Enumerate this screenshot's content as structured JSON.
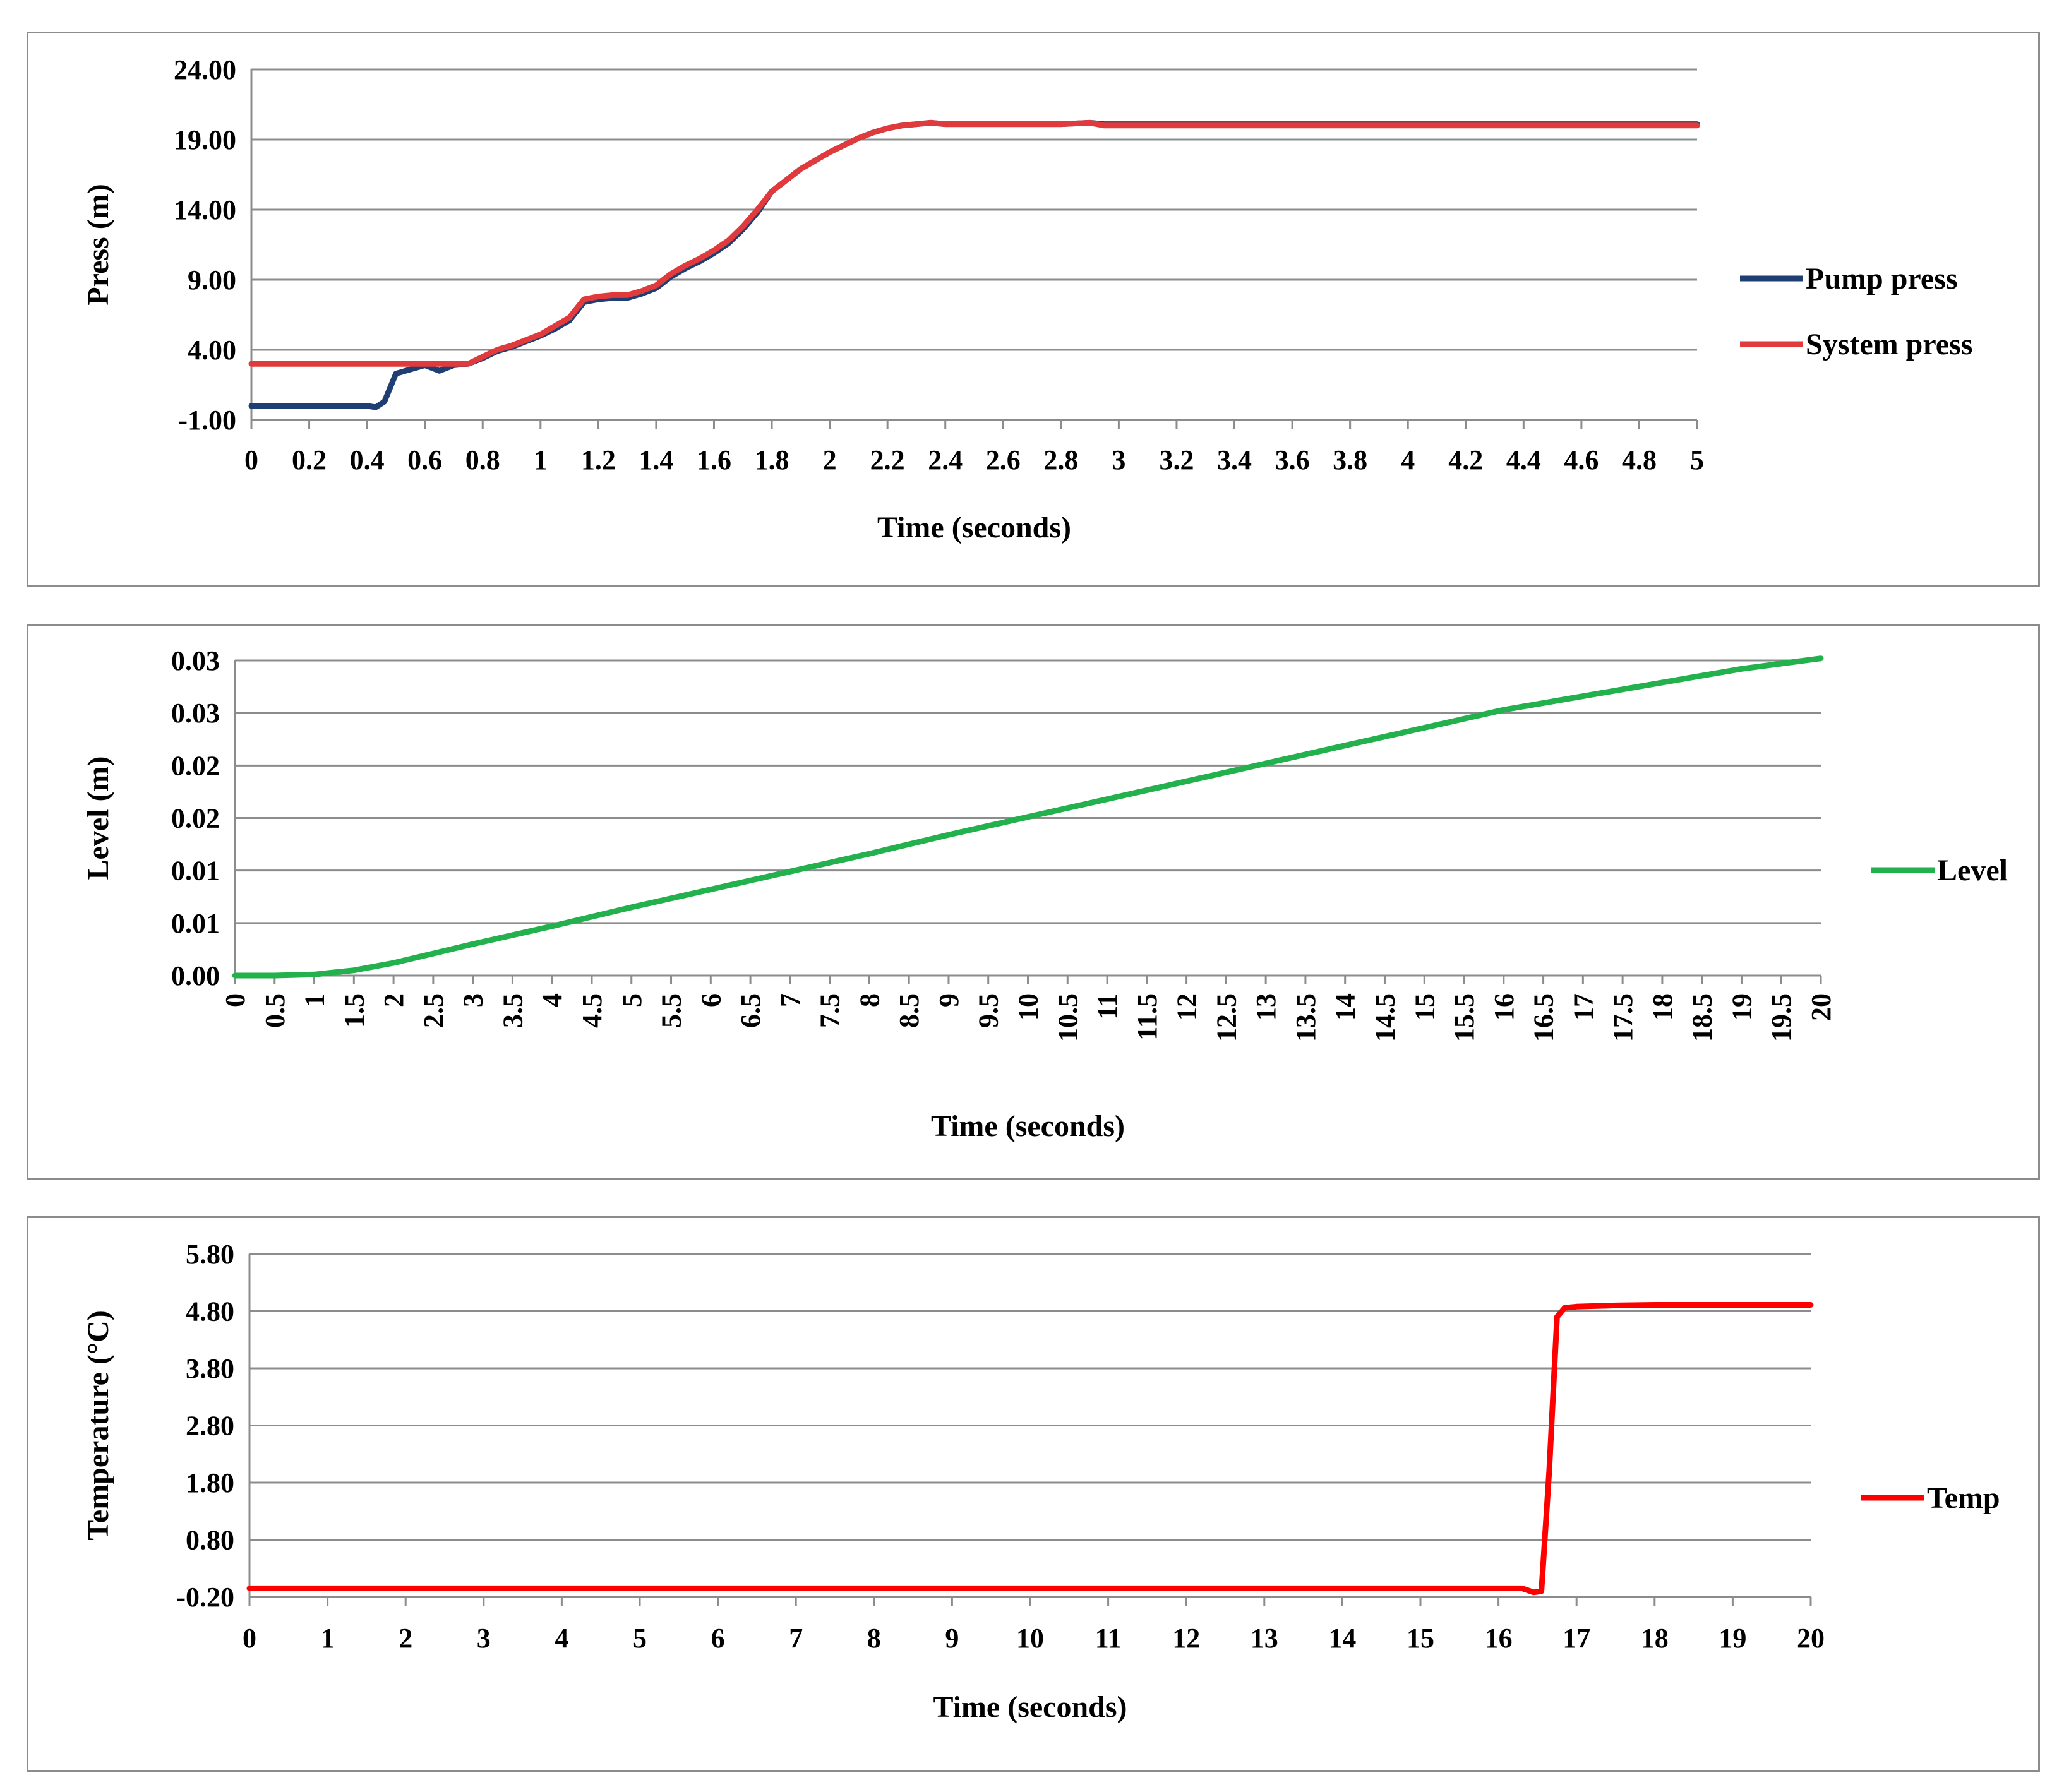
{
  "chart_data": [
    {
      "type": "line",
      "xlabel": "Time (seconds)",
      "ylabel": "Press (m)",
      "ylim": [
        -1,
        24
      ],
      "yticks": [
        "24.00",
        "19.00",
        "14.00",
        "9.00",
        "4.00",
        "-1.00"
      ],
      "ytick_values": [
        24,
        19,
        14,
        9,
        4,
        -1
      ],
      "xticks": [
        "0",
        "0.2",
        "0.4",
        "0.6",
        "0.8",
        "1",
        "1.2",
        "1.4",
        "1.6",
        "1.8",
        "2",
        "2.2",
        "2.4",
        "2.6",
        "2.8",
        "3",
        "3.2",
        "3.4",
        "3.6",
        "3.8",
        "4",
        "4.2",
        "4.4",
        "4.6",
        "4.8",
        "5"
      ],
      "xtick_values": [
        0,
        0.2,
        0.4,
        0.6,
        0.8,
        1,
        1.2,
        1.4,
        1.6,
        1.8,
        2,
        2.2,
        2.4,
        2.6,
        2.8,
        3,
        3.2,
        3.4,
        3.6,
        3.8,
        4,
        4.2,
        4.4,
        4.6,
        4.8,
        5
      ],
      "xlim": [
        0,
        5
      ],
      "grid": true,
      "legend_position": "right",
      "series": [
        {
          "name": "Pump press",
          "color": "#1f3f73",
          "x": [
            0,
            0.1,
            0.2,
            0.3,
            0.4,
            0.43,
            0.46,
            0.5,
            0.55,
            0.6,
            0.65,
            0.7,
            0.75,
            0.8,
            0.85,
            0.9,
            0.95,
            1.0,
            1.05,
            1.1,
            1.15,
            1.2,
            1.25,
            1.3,
            1.35,
            1.4,
            1.45,
            1.5,
            1.55,
            1.6,
            1.65,
            1.7,
            1.75,
            1.8,
            1.85,
            1.9,
            1.95,
            2.0,
            2.05,
            2.1,
            2.15,
            2.2,
            2.25,
            2.3,
            2.35,
            2.4,
            2.6,
            2.8,
            2.9,
            2.95,
            3.0,
            3.2,
            3.4,
            3.6,
            3.8,
            4.0,
            4.2,
            4.4,
            4.6,
            4.8,
            5.0
          ],
          "values": [
            0.0,
            0.0,
            0.0,
            0.0,
            0.0,
            -0.1,
            0.3,
            2.3,
            2.6,
            2.9,
            2.5,
            2.9,
            3.0,
            3.4,
            3.9,
            4.2,
            4.6,
            5.0,
            5.5,
            6.1,
            7.4,
            7.6,
            7.7,
            7.7,
            8.0,
            8.4,
            9.2,
            9.8,
            10.3,
            10.9,
            11.6,
            12.6,
            13.8,
            15.3,
            16.1,
            16.9,
            17.5,
            18.1,
            18.6,
            19.1,
            19.5,
            19.8,
            20.0,
            20.1,
            20.2,
            20.1,
            20.1,
            20.1,
            20.2,
            20.1,
            20.1,
            20.1,
            20.1,
            20.1,
            20.1,
            20.1,
            20.1,
            20.1,
            20.1,
            20.1,
            20.1
          ]
        },
        {
          "name": "System press",
          "color": "#e03a3c",
          "x": [
            0,
            0.2,
            0.4,
            0.5,
            0.6,
            0.7,
            0.75,
            0.8,
            0.85,
            0.9,
            0.95,
            1.0,
            1.05,
            1.1,
            1.15,
            1.2,
            1.25,
            1.3,
            1.35,
            1.4,
            1.45,
            1.5,
            1.55,
            1.6,
            1.65,
            1.7,
            1.75,
            1.8,
            1.85,
            1.9,
            1.95,
            2.0,
            2.05,
            2.1,
            2.15,
            2.2,
            2.25,
            2.3,
            2.35,
            2.4,
            2.6,
            2.8,
            2.9,
            2.95,
            3.0,
            3.2,
            3.4,
            3.6,
            3.8,
            4.0,
            4.2,
            4.4,
            4.6,
            4.8,
            5.0
          ],
          "values": [
            3.0,
            3.0,
            3.0,
            3.0,
            3.0,
            3.0,
            3.0,
            3.5,
            4.0,
            4.3,
            4.7,
            5.1,
            5.7,
            6.3,
            7.6,
            7.8,
            7.9,
            7.9,
            8.2,
            8.6,
            9.4,
            10.0,
            10.5,
            11.1,
            11.8,
            12.8,
            14.0,
            15.3,
            16.1,
            16.9,
            17.5,
            18.1,
            18.6,
            19.1,
            19.5,
            19.8,
            20.0,
            20.1,
            20.2,
            20.1,
            20.1,
            20.1,
            20.2,
            20.0,
            20.0,
            20.0,
            20.0,
            20.0,
            20.0,
            20.0,
            20.0,
            20.0,
            20.0,
            20.0,
            20.0
          ]
        }
      ]
    },
    {
      "type": "line",
      "xlabel": "Time (seconds)",
      "ylabel": "Level (m)",
      "ylim": [
        0,
        0.03
      ],
      "yticks": [
        "0.03",
        "0.03",
        "0.02",
        "0.02",
        "0.01",
        "0.01",
        "0.00"
      ],
      "ytick_values": [
        0.03,
        0.025,
        0.02,
        0.015,
        0.01,
        0.005,
        0
      ],
      "xticks": [
        "0",
        "0.5",
        "1",
        "1.5",
        "2",
        "2.5",
        "3",
        "3.5",
        "4",
        "4.5",
        "5",
        "5.5",
        "6",
        "6.5",
        "7",
        "7.5",
        "8",
        "8.5",
        "9",
        "9.5",
        "10",
        "10.5",
        "11",
        "11.5",
        "12",
        "12.5",
        "13",
        "13.5",
        "14",
        "14.5",
        "15",
        "15.5",
        "16",
        "16.5",
        "17",
        "17.5",
        "18",
        "18.5",
        "19",
        "19.5",
        "20"
      ],
      "xtick_values": [
        0,
        0.5,
        1,
        1.5,
        2,
        2.5,
        3,
        3.5,
        4,
        4.5,
        5,
        5.5,
        6,
        6.5,
        7,
        7.5,
        8,
        8.5,
        9,
        9.5,
        10,
        10.5,
        11,
        11.5,
        12,
        12.5,
        13,
        13.5,
        14,
        14.5,
        15,
        15.5,
        16,
        16.5,
        17,
        17.5,
        18,
        18.5,
        19,
        19.5,
        20
      ],
      "xlim": [
        0,
        20
      ],
      "x_tick_rotation": -90,
      "grid": true,
      "legend_position": "right",
      "series": [
        {
          "name": "Level",
          "color": "#22b14c",
          "x": [
            0,
            0.5,
            1.0,
            1.5,
            2.0,
            2.5,
            3.0,
            4.0,
            5.0,
            6.0,
            7.0,
            8.0,
            9.0,
            10.0,
            11.0,
            12.0,
            13.0,
            14.0,
            15.0,
            16.0,
            17.0,
            18.0,
            19.0,
            20.0
          ],
          "values": [
            0.0,
            0.0,
            0.0001,
            0.0005,
            0.0012,
            0.0021,
            0.003,
            0.0047,
            0.0065,
            0.0082,
            0.0099,
            0.0116,
            0.0134,
            0.0151,
            0.0168,
            0.0185,
            0.0202,
            0.0219,
            0.0236,
            0.0253,
            0.0266,
            0.0279,
            0.0292,
            0.0302
          ]
        }
      ]
    },
    {
      "type": "line",
      "xlabel": "Time (seconds)",
      "ylabel": "Temperature (°C)",
      "ylim": [
        -0.2,
        5.8
      ],
      "yticks": [
        "5.80",
        "4.80",
        "3.80",
        "2.80",
        "1.80",
        "0.80",
        "-0.20"
      ],
      "ytick_values": [
        5.8,
        4.8,
        3.8,
        2.8,
        1.8,
        0.8,
        -0.2
      ],
      "xticks": [
        "0",
        "1",
        "2",
        "3",
        "4",
        "5",
        "6",
        "7",
        "8",
        "9",
        "10",
        "11",
        "12",
        "13",
        "14",
        "15",
        "16",
        "17",
        "18",
        "19",
        "20"
      ],
      "xtick_values": [
        0,
        1,
        2,
        3,
        4,
        5,
        6,
        7,
        8,
        9,
        10,
        11,
        12,
        13,
        14,
        15,
        16,
        17,
        18,
        19,
        20
      ],
      "xlim": [
        0,
        20
      ],
      "grid": true,
      "legend_position": "right",
      "series": [
        {
          "name": "Temp",
          "color": "#ff0000",
          "x": [
            0,
            2,
            4,
            6,
            8,
            10,
            12,
            14,
            16,
            16.3,
            16.45,
            16.55,
            16.65,
            16.75,
            16.85,
            17.0,
            17.5,
            18.0,
            19.0,
            20.0
          ],
          "values": [
            -0.05,
            -0.05,
            -0.05,
            -0.05,
            -0.05,
            -0.05,
            -0.05,
            -0.05,
            -0.05,
            -0.05,
            -0.12,
            -0.1,
            2.0,
            4.7,
            4.86,
            4.88,
            4.9,
            4.91,
            4.91,
            4.91
          ]
        }
      ]
    }
  ]
}
